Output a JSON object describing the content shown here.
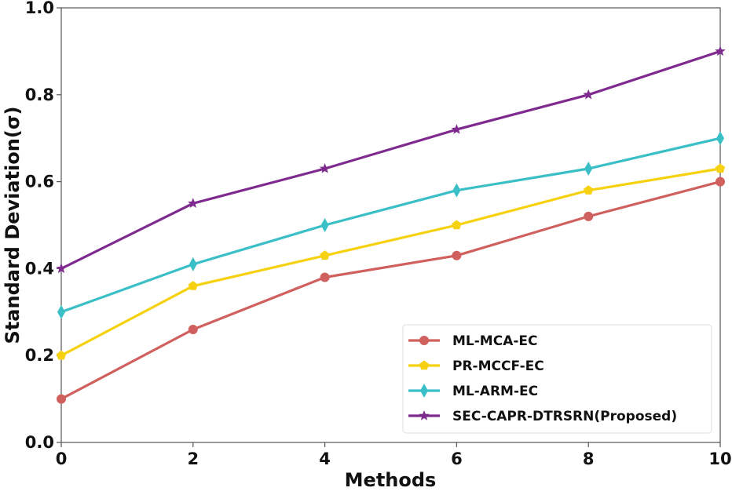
{
  "chart_data": {
    "type": "line",
    "title": "",
    "xlabel": "Methods",
    "ylabel": "Standard Deviation(σ)",
    "xlim": [
      0,
      10
    ],
    "ylim": [
      0.0,
      1.0
    ],
    "x": [
      0,
      2,
      4,
      6,
      8,
      10
    ],
    "xticks": [
      "0",
      "2",
      "4",
      "6",
      "8",
      "10"
    ],
    "yticks": [
      "0.0",
      "0.2",
      "0.4",
      "0.6",
      "0.8",
      "1.0"
    ],
    "grid": false,
    "legend_position": "lower-right",
    "series": [
      {
        "name": "ML-MCA-EC",
        "color": "#d0605e",
        "marker": "circle",
        "values": [
          0.1,
          0.26,
          0.38,
          0.43,
          0.52,
          0.6
        ]
      },
      {
        "name": "PR-MCCF-EC",
        "color": "#f5d10f",
        "marker": "pentagon",
        "values": [
          0.2,
          0.36,
          0.43,
          0.5,
          0.58,
          0.63
        ]
      },
      {
        "name": "ML-ARM-EC",
        "color": "#3bbfc6",
        "marker": "thin-diamond",
        "values": [
          0.3,
          0.41,
          0.5,
          0.58,
          0.63,
          0.7
        ]
      },
      {
        "name": "SEC-CAPR-DTRSRN(Proposed)",
        "color": "#7e2a8e",
        "marker": "star",
        "values": [
          0.4,
          0.55,
          0.63,
          0.72,
          0.8,
          0.9
        ]
      }
    ]
  }
}
